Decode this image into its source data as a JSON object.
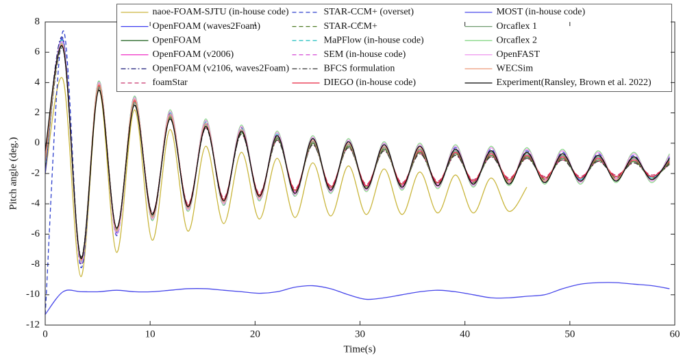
{
  "chart_data": {
    "type": "line",
    "x_label": "Time(s)",
    "y_label": "Pitch angle (deg.)",
    "xlim": [
      0,
      60
    ],
    "xticks": [
      0,
      10,
      20,
      30,
      40,
      50,
      60
    ],
    "ylim": [
      -12,
      8
    ],
    "yticks": [
      -12,
      -10,
      -8,
      -6,
      -4,
      -2,
      0,
      2,
      4,
      6,
      8
    ],
    "legend_loc": "upper center",
    "legend_columns": 3,
    "x": [
      0,
      1.7,
      3.4,
      5.1,
      6.8,
      8.5,
      10.2,
      11.9,
      13.6,
      15.3,
      17,
      18.7,
      20.4,
      22.1,
      23.8,
      25.5,
      27.2,
      28.9,
      30.6,
      32.3,
      34,
      35.7,
      37.4,
      39.1,
      40.8,
      42.5,
      44.2,
      45.9,
      47.6,
      49.3,
      51,
      52.7,
      54.4,
      56.1,
      57.8,
      59.5
    ],
    "series": [
      {
        "name": "naoe-FOAM-SJTU (in-house code)",
        "color": "#c9b53a",
        "dash": "solid",
        "values": [
          -2,
          4.2,
          -8.8,
          3.5,
          -7.2,
          2.2,
          -6.4,
          0.9,
          -5.8,
          -0.2,
          -5.3,
          -0.6,
          -5,
          -1,
          -4.9,
          -1.3,
          -4.8,
          -1.5,
          -4.7,
          -1.7,
          -4.7,
          -1.9,
          -4.6,
          -2.1,
          -4.6,
          -2.3,
          -4.5,
          -2.9,
          null,
          null,
          null,
          null,
          null,
          null,
          null,
          null
        ]
      },
      {
        "name": "OpenFOAM (waves2Foam)",
        "color": "#3b3bf0",
        "dash": "solid",
        "values": [
          -2,
          6.8,
          -7.9,
          3.9,
          -5.9,
          2.9,
          -4.9,
          1.9,
          -4.3,
          1.3,
          -3.9,
          0.9,
          -3.6,
          0.5,
          -3.3,
          0.2,
          -3.1,
          0,
          -3,
          -0.2,
          -2.9,
          -0.4,
          -2.8,
          -0.5,
          -2.7,
          -0.6,
          -2.6,
          -0.7,
          -2.5,
          -0.8,
          -2.4,
          -0.9,
          -2.4,
          -1,
          -2.3,
          -1.1
        ]
      },
      {
        "name": "OpenFOAM",
        "color": "#2e6b2e",
        "dash": "solid",
        "values": [
          -1.5,
          6.4,
          -7.7,
          3.7,
          -5.7,
          2.7,
          -4.7,
          1.7,
          -4.1,
          1.1,
          -3.7,
          0.7,
          -3.4,
          0.3,
          -3.1,
          0,
          -2.9,
          -0.2,
          -2.8,
          -0.4,
          -2.7,
          -0.6,
          -2.6,
          -0.7,
          -2.5,
          -0.8,
          -2.4,
          -0.9,
          -2.3,
          -1,
          -2.3,
          -1.1,
          -2.2,
          -1.2,
          -2.2,
          -1.3
        ]
      },
      {
        "name": "OpenFOAM (v2006)",
        "color": "#f03cc8",
        "dash": "solid",
        "values": [
          -1,
          6.6,
          -7.8,
          3.8,
          -5.8,
          2.8,
          -4.8,
          1.8,
          -4.2,
          1.2,
          -3.8,
          0.8,
          -3.5,
          0.4,
          -3.2,
          0.1,
          -3,
          -0.1,
          -2.9,
          -0.3,
          -2.8,
          -0.5,
          -2.7,
          -0.6,
          -2.6,
          -0.7,
          -2.5,
          -0.8,
          -2.4,
          -0.9,
          -2.3,
          -1,
          -2.3,
          -1.1,
          -2.2,
          -1.2
        ]
      },
      {
        "name": "OpenFOAM (v2106, waves2Foam)",
        "color": "#1c1c7a",
        "dash": "dashdot",
        "values": [
          -1.2,
          6.9,
          -8,
          4,
          -6,
          3,
          -5,
          2,
          -4.4,
          1.4,
          -4,
          1,
          -3.7,
          0.6,
          -3.4,
          0.3,
          -3.2,
          0.1,
          -3.1,
          -0.1,
          -3,
          -0.3,
          -2.9,
          -0.4,
          -2.8,
          -0.5,
          -2.7,
          -0.6,
          -2.6,
          -0.7,
          -2.5,
          -0.8,
          -2.5,
          -0.9,
          -2.4,
          -1
        ]
      },
      {
        "name": "foamStar",
        "color": "#c8336a",
        "dash": "dashed",
        "values": [
          -0.8,
          6.3,
          -7.6,
          3.6,
          -5.6,
          2.6,
          -4.6,
          1.6,
          -4,
          1,
          -3.6,
          0.6,
          -3.3,
          0.2,
          -3,
          -0.1,
          -2.8,
          -0.3,
          -2.7,
          -0.5,
          -2.6,
          -0.7,
          -2.5,
          -0.8,
          -2.4,
          -0.9,
          -2.3,
          -1,
          -2.2,
          -1.1,
          -2.2,
          -1.2,
          -2.1,
          -1.3,
          -2.1,
          -1.4
        ]
      },
      {
        "name": "STAR-CCM+ (overset)",
        "color": "#2a3ccc",
        "dash": "dashed",
        "values": [
          -11.3,
          7.4,
          -8.2,
          4.1,
          -6.1,
          3.1,
          -5.1,
          2.1,
          -4.5,
          1.5,
          -4.1,
          1.1,
          -3.8,
          0.7,
          -3.5,
          0.4,
          -3.3,
          0.2,
          -3.1,
          0,
          -3,
          -0.2,
          -2.9,
          -0.3,
          -2.8,
          -0.4,
          -2.7,
          -0.5,
          -2.6,
          -0.6,
          -2.5,
          -0.7,
          -2.5,
          -0.8,
          -2.4,
          -0.9
        ]
      },
      {
        "name": "STAR-CCM+",
        "color": "#4f7a24",
        "dash": "dashed",
        "values": [
          -1.3,
          6.5,
          -7.8,
          3.7,
          -5.8,
          2.7,
          -4.8,
          1.7,
          -4.2,
          1.1,
          -3.8,
          0.7,
          -3.5,
          0.3,
          -3.2,
          0,
          -3,
          -0.2,
          -2.9,
          -0.4,
          -2.8,
          -0.6,
          -2.7,
          -0.7,
          -2.6,
          -0.8,
          -2.5,
          -0.9,
          -2.4,
          -1,
          -2.4,
          -1.1,
          -2.3,
          -1.2,
          -2.3,
          -1.3
        ]
      },
      {
        "name": "MaPFlow (in-house code)",
        "color": "#33c4c4",
        "dash": "dashed",
        "values": [
          -1.4,
          6.7,
          -7.9,
          4,
          -5.9,
          3,
          -4.9,
          2,
          -4.3,
          1.4,
          -3.9,
          1,
          -3.6,
          0.6,
          -3.3,
          0.3,
          -3.1,
          0.1,
          -3,
          -0.1,
          -2.9,
          -0.3,
          -2.8,
          -0.4,
          -2.7,
          -0.5,
          -2.6,
          -0.6,
          -2.5,
          -0.7,
          -2.4,
          -0.8,
          -2.4,
          -0.9,
          -2.3,
          -1
        ]
      },
      {
        "name": "SEM (in-house code)",
        "color": "#d855d8",
        "dash": "dashed",
        "values": [
          -1.1,
          6.5,
          -7.7,
          3.9,
          -5.8,
          2.9,
          -4.9,
          2.1,
          -4.3,
          1.5,
          -3.9,
          1.1,
          -3.6,
          0.7,
          -3.4,
          0.4,
          -3.2,
          0.2,
          -3.1,
          0,
          -3,
          -0.1,
          -2.9,
          -0.2,
          -2.8,
          -0.3,
          -2.7,
          -0.4,
          -2.6,
          -0.5,
          -2.6,
          -0.6,
          -2.5,
          -0.7,
          -2.5,
          -0.8
        ]
      },
      {
        "name": "BFCS formulation",
        "color": "#333333",
        "dash": "dashdot",
        "values": [
          -1.6,
          6.2,
          -7.5,
          3.6,
          -5.6,
          2.6,
          -4.6,
          1.6,
          -4.1,
          1,
          -3.7,
          0.6,
          -3.4,
          0.2,
          -3.1,
          -0.1,
          -2.9,
          -0.3,
          -2.8,
          -0.5,
          -2.7,
          -0.7,
          -2.6,
          -0.8,
          -2.5,
          -0.9,
          -2.4,
          -1,
          -2.3,
          -1.1,
          -2.3,
          -1.2,
          -2.2,
          -1.3,
          -2.2,
          -1.4
        ]
      },
      {
        "name": "DIEGO (in-house code)",
        "color": "#e8223f",
        "dash": "solid",
        "values": [
          -1,
          6.4,
          -7.7,
          3.8,
          -5.7,
          2.8,
          -4.7,
          1.8,
          -4.1,
          1.2,
          -3.7,
          0.8,
          -3.4,
          0.4,
          -3.1,
          0.1,
          -2.9,
          -0.1,
          -2.8,
          -0.3,
          -2.7,
          -0.5,
          -2.6,
          -0.6,
          -2.5,
          -0.7,
          -2.4,
          -0.8,
          -2.3,
          -0.9,
          -2.3,
          -1,
          -2.2,
          -1.1,
          -2.2,
          -1.2
        ]
      },
      {
        "name": "MOST (in-house code)",
        "color": "#4646ea",
        "dash": "solid",
        "values": [
          -11.3,
          -9.8,
          -9.8,
          -9.8,
          -9.7,
          -9.8,
          -9.8,
          -9.7,
          -9.6,
          -9.6,
          -9.7,
          -9.8,
          -9.9,
          -9.8,
          -9.5,
          -9.4,
          -9.6,
          -10,
          -10.3,
          -10.2,
          -10,
          -9.8,
          -9.7,
          -9.8,
          -10,
          -10.2,
          -10.2,
          -10.1,
          -10,
          -9.6,
          -9.3,
          -9.2,
          -9.2,
          -9.3,
          -9.4,
          -9.6
        ]
      },
      {
        "name": "Orcaflex 1",
        "color": "#6f9a6f",
        "dash": "solid",
        "values": [
          -1.2,
          6.3,
          -7.6,
          3.7,
          -5.7,
          2.7,
          -4.8,
          1.8,
          -4.2,
          1.2,
          -3.8,
          0.8,
          -3.5,
          0.4,
          -3.3,
          0.1,
          -3.1,
          -0.1,
          -3,
          -0.3,
          -2.9,
          -0.4,
          -2.8,
          -0.5,
          -2.7,
          -0.6,
          -2.6,
          -0.7,
          -2.5,
          -0.8,
          -2.5,
          -0.9,
          -2.4,
          -1,
          -2.4,
          -1.1
        ]
      },
      {
        "name": "Orcaflex 2",
        "color": "#8ad88a",
        "dash": "solid",
        "values": [
          -1.3,
          6.5,
          -7.8,
          4.1,
          -6,
          3.1,
          -5.1,
          2.2,
          -4.5,
          1.6,
          -4.1,
          1.2,
          -3.8,
          0.8,
          -3.5,
          0.5,
          -3.3,
          0.3,
          -3.2,
          0.1,
          -3.1,
          0,
          -3,
          -0.1,
          -2.9,
          -0.2,
          -2.8,
          -0.3,
          -2.7,
          -0.4,
          -2.7,
          -0.5,
          -2.6,
          -0.6,
          -2.6,
          -0.7
        ]
      },
      {
        "name": "OpenFAST",
        "color": "#ef9bef",
        "dash": "solid",
        "values": [
          -1.2,
          6.6,
          -7.9,
          4,
          -6,
          3,
          -5,
          2.1,
          -4.4,
          1.5,
          -4,
          1.1,
          -3.7,
          0.7,
          -3.4,
          0.4,
          -3.2,
          0.2,
          -3.1,
          0,
          -3,
          -0.1,
          -2.9,
          -0.2,
          -2.8,
          -0.3,
          -2.7,
          -0.4,
          -2.6,
          -0.5,
          -2.6,
          -0.6,
          -2.5,
          -0.7,
          -2.5,
          -0.8
        ]
      },
      {
        "name": "WECSim",
        "color": "#ee9a7a",
        "dash": "solid",
        "values": [
          -1.1,
          6.4,
          -7.7,
          3.9,
          -5.8,
          2.9,
          -4.9,
          1.9,
          -4.3,
          1.3,
          -3.9,
          0.9,
          -3.6,
          0.5,
          -3.3,
          0.2,
          -3.1,
          0,
          -3,
          -0.2,
          -2.9,
          -0.3,
          -2.8,
          -0.4,
          -2.7,
          -0.5,
          -2.6,
          -0.6,
          -2.5,
          -0.7,
          -2.5,
          -0.8,
          -2.4,
          -0.9,
          -2.4,
          -1
        ]
      },
      {
        "name": "Experiment(Ransley, Brown et al. 2022)",
        "color": "#000000",
        "dash": "solid",
        "values": [
          -0.5,
          6.3,
          -7.6,
          3.5,
          -5.6,
          2.5,
          -4.7,
          1.6,
          -4.2,
          1.1,
          -3.8,
          0.8,
          -3.5,
          0.5,
          -3.3,
          0.3,
          -3.1,
          0.1,
          -3,
          -0.1,
          -2.9,
          -0.2,
          -2.8,
          -0.4,
          -2.7,
          -0.5,
          -2.7,
          -0.6,
          -2.6,
          -0.7,
          -2.5,
          -0.8,
          -2.5,
          -0.9,
          -2.4,
          -1
        ]
      }
    ]
  }
}
